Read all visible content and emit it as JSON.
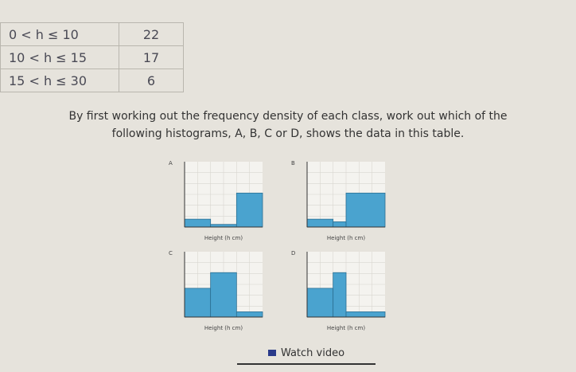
{
  "table": {
    "rows": [
      [
        "0 < h ≤ 10",
        "22"
      ],
      [
        "10 < h ≤ 15",
        "17"
      ],
      [
        "15 < h ≤ 30",
        "6"
      ]
    ]
  },
  "instructions": [
    "By first working out the frequency density of each class, work out which of the",
    "following histograms, A, B, C or D, shows the data in this table."
  ],
  "histograms": [
    {
      "label": "A",
      "x_label": "Height (h cm)",
      "bins": [
        0,
        10,
        20,
        30
      ],
      "values": [
        0.6,
        0.2,
        2.6
      ],
      "ylim": [
        0,
        5
      ],
      "color": "#4aa3cf"
    },
    {
      "label": "B",
      "x_label": "Height (h cm)",
      "bins": [
        0,
        10,
        15,
        30
      ],
      "values": [
        0.6,
        0.4,
        2.6
      ],
      "ylim": [
        0,
        5
      ],
      "color": "#4aa3cf"
    },
    {
      "label": "C",
      "x_label": "Height (h cm)",
      "bins": [
        0,
        10,
        20,
        30
      ],
      "values": [
        2.2,
        3.4,
        0.4
      ],
      "ylim": [
        0,
        5
      ],
      "color": "#4aa3cf"
    },
    {
      "label": "D",
      "x_label": "Height (h cm)",
      "bins": [
        0,
        10,
        15,
        30
      ],
      "values": [
        2.2,
        3.4,
        0.4
      ],
      "ylim": [
        0,
        5
      ],
      "color": "#4aa3cf"
    }
  ],
  "button": "Watch video"
}
